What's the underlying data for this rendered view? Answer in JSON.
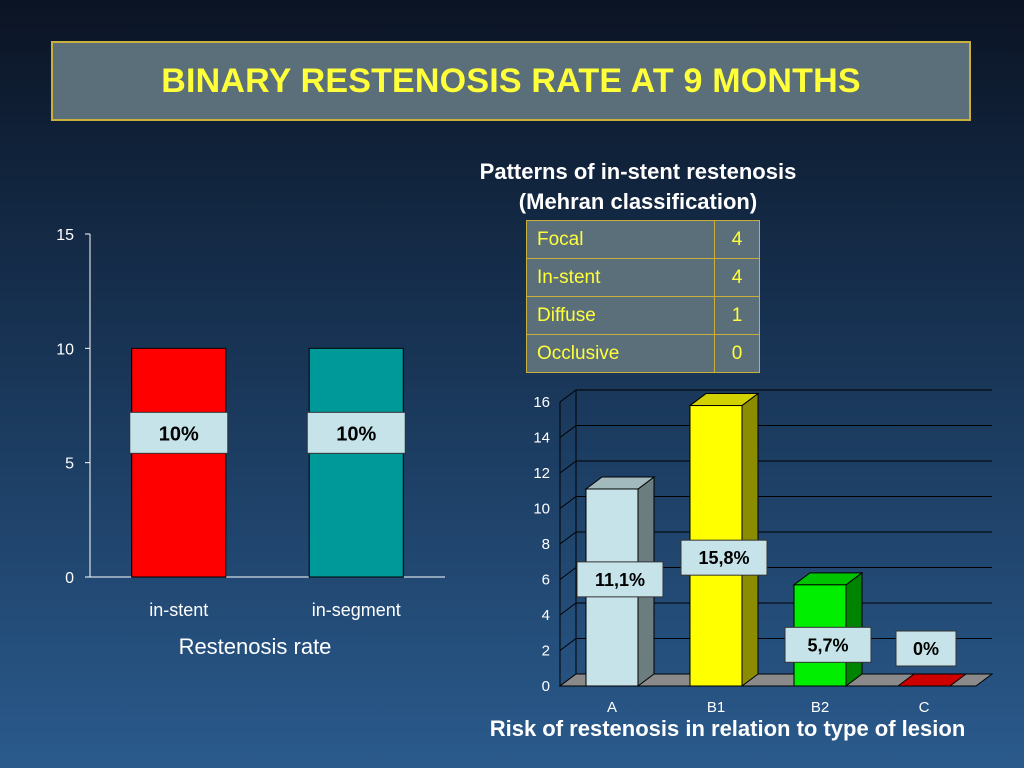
{
  "title": "BINARY RESTENOSIS RATE AT 9 MONTHS",
  "colors": {
    "title_bg": "#5b6f7a",
    "title_text": "#ffff3a",
    "title_border": "#c8b03a",
    "bar_in_stent": "#ff0000",
    "bar_in_segment": "#009999"
  },
  "pattern_table": {
    "title_line1": "Patterns of in-stent restenosis",
    "title_line2": "(Mehran classification)",
    "rows": [
      {
        "label": "Focal",
        "value": "4"
      },
      {
        "label": "In-stent",
        "value": "4"
      },
      {
        "label": "Diffuse",
        "value": "1"
      },
      {
        "label": "Occlusive",
        "value": "0"
      }
    ]
  },
  "chart_data": [
    {
      "type": "bar",
      "categories": [
        "in-stent",
        "in-segment"
      ],
      "values": [
        10,
        10
      ],
      "data_labels": [
        "10%",
        "10%"
      ],
      "colors": [
        "#ff0000",
        "#009999"
      ],
      "xlabel": "Restenosis rate",
      "ylim": [
        0,
        15
      ],
      "yticks": [
        0,
        5,
        10,
        15
      ],
      "grid": false
    },
    {
      "type": "bar",
      "style": "3d",
      "categories": [
        "A",
        "B1",
        "B2",
        "C"
      ],
      "values": [
        11.1,
        15.8,
        5.7,
        0
      ],
      "data_labels": [
        "11,1%",
        "15,8%",
        "5,7%",
        "0%"
      ],
      "colors": [
        "#c5e3e8",
        "#ffff00",
        "#00ee00",
        "#cc0000"
      ],
      "xlabel": "Risk of restenosis in relation to type of lesion",
      "ylim": [
        0,
        16
      ],
      "yticks": [
        0,
        2,
        4,
        6,
        8,
        10,
        12,
        14,
        16
      ],
      "grid": true
    }
  ]
}
